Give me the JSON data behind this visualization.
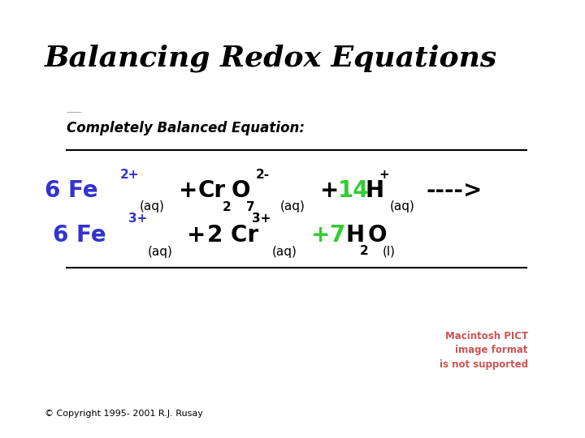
{
  "title": "Balancing Redox Equations",
  "subtitle": "Completely Balanced Equation:",
  "background_color": "#ffffff",
  "title_color": "#000000",
  "subtitle_color": "#000000",
  "blue_color": "#3333cc",
  "green_color": "#33cc33",
  "black_color": "#000000",
  "red_notice_color": "#cc5555",
  "copyright": "© Copyright 1995- 2001 R.J. Rusay",
  "title_fontsize": 26,
  "subtitle_fontsize": 12,
  "main_fs": 20,
  "sup_fs": 11,
  "sub_fs": 11,
  "aq_fs": 11
}
